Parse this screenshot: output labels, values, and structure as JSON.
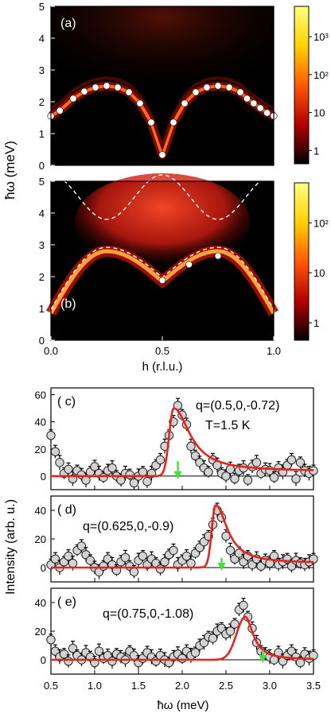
{
  "figure": {
    "shared_ylabel_top": "ħω (meV)",
    "shared_ylabel_bottom": "Intensity (arb. u.)",
    "xlabel_top": "h (r.l.u.)",
    "xlabel_bottom": "ħω (meV)"
  },
  "chart_data": [
    {
      "type": "heatmap",
      "panel": "(a)",
      "xlim": [
        0.0,
        1.0
      ],
      "ylim": [
        0,
        5
      ],
      "x_ticks": [
        "0.0",
        "0.5",
        "1.0"
      ],
      "y_ticks": [
        "0",
        "1",
        "2",
        "3",
        "4",
        "5"
      ],
      "colorbar": {
        "scale": "log",
        "ticks": [
          "1",
          "10",
          "10²",
          "10³"
        ],
        "colors": [
          "#000000",
          "#b40000",
          "#ff5a00",
          "#ffd200",
          "#ffff80"
        ]
      },
      "series": [
        {
          "name": "points",
          "points": [
            [
              0.0,
              1.55
            ],
            [
              0.04,
              1.72
            ],
            [
              0.1,
              2.1
            ],
            [
              0.15,
              2.32
            ],
            [
              0.2,
              2.45
            ],
            [
              0.25,
              2.5
            ],
            [
              0.3,
              2.45
            ],
            [
              0.35,
              2.3
            ],
            [
              0.4,
              1.95
            ],
            [
              0.45,
              1.35
            ],
            [
              0.5,
              0.33
            ],
            [
              0.55,
              1.35
            ],
            [
              0.6,
              1.95
            ],
            [
              0.65,
              2.3
            ],
            [
              0.7,
              2.45
            ],
            [
              0.75,
              2.5
            ],
            [
              0.8,
              2.45
            ],
            [
              0.85,
              2.3
            ],
            [
              0.88,
              2.1
            ],
            [
              0.91,
              1.95
            ],
            [
              0.94,
              1.8
            ],
            [
              0.97,
              1.65
            ],
            [
              1.0,
              1.55
            ]
          ]
        }
      ]
    },
    {
      "type": "heatmap",
      "panel": "(b)",
      "xlim": [
        0.0,
        1.0
      ],
      "ylim": [
        0,
        5
      ],
      "x_ticks": [
        "0.0",
        "0.5",
        "1.0"
      ],
      "y_ticks": [
        "0",
        "1",
        "2",
        "3",
        "4",
        "5"
      ],
      "xlabel": "h (r.l.u.)",
      "colorbar": {
        "scale": "log",
        "ticks": [
          "1",
          "10",
          "10²"
        ],
        "colors": [
          "#000000",
          "#b40000",
          "#ff5a00",
          "#ffd200",
          "#ffff80"
        ]
      },
      "series": [
        {
          "name": "points",
          "points": [
            [
              0.5,
              1.88
            ],
            [
              0.62,
              2.38
            ],
            [
              0.75,
              2.65
            ]
          ]
        }
      ]
    },
    {
      "type": "scatter",
      "panel": "( c)",
      "annotation": [
        "q=(0.5,0,-0.72)",
        "T=1.5 K"
      ],
      "xlim": [
        0.5,
        3.5
      ],
      "ylim": [
        -10,
        65
      ],
      "y_ticks": [
        0,
        20,
        40,
        60
      ],
      "arrow_x": 1.95,
      "fit": {
        "baseline": 3.5,
        "center": 1.9,
        "amplitude": 48,
        "width_left": 0.07,
        "width_right": 0.22
      },
      "x": [
        0.5,
        0.55,
        0.6,
        0.65,
        0.7,
        0.75,
        0.8,
        0.85,
        0.9,
        0.95,
        1.0,
        1.05,
        1.1,
        1.15,
        1.2,
        1.25,
        1.3,
        1.35,
        1.4,
        1.45,
        1.5,
        1.55,
        1.6,
        1.65,
        1.7,
        1.75,
        1.8,
        1.85,
        1.9,
        1.95,
        2.0,
        2.05,
        2.1,
        2.15,
        2.2,
        2.25,
        2.3,
        2.35,
        2.4,
        2.45,
        2.5,
        2.55,
        2.6,
        2.65,
        2.7,
        2.75,
        2.8,
        2.85,
        2.9,
        2.95,
        3.0,
        3.05,
        3.1,
        3.15,
        3.2,
        3.25,
        3.3,
        3.35,
        3.4,
        3.45,
        3.5
      ],
      "y": [
        30,
        18,
        10,
        2,
        5,
        -2,
        4,
        1,
        -3,
        3,
        7,
        2,
        -1,
        4,
        6,
        0,
        -3,
        2,
        1,
        -5,
        0,
        3,
        -4,
        2,
        8,
        12,
        22,
        30,
        40,
        52,
        45,
        38,
        22,
        15,
        10,
        6,
        3,
        12,
        8,
        2,
        0,
        5,
        -2,
        4,
        6,
        -3,
        7,
        10,
        2,
        5,
        4,
        -1,
        6,
        3,
        8,
        12,
        -2,
        10,
        4,
        2,
        4
      ]
    },
    {
      "type": "scatter",
      "panel": "( d)",
      "annotation": [
        "q=(0.625,0,-0.9)"
      ],
      "xlim": [
        0.5,
        3.5
      ],
      "ylim": [
        -10,
        50
      ],
      "y_ticks": [
        0,
        20,
        40
      ],
      "arrow_x": 2.45,
      "fit": {
        "baseline": 3,
        "center": 2.38,
        "amplitude": 42,
        "width_left": 0.06,
        "width_right": 0.16
      },
      "x": [
        0.5,
        0.55,
        0.6,
        0.65,
        0.7,
        0.75,
        0.8,
        0.85,
        0.9,
        0.95,
        1.0,
        1.05,
        1.1,
        1.15,
        1.2,
        1.25,
        1.3,
        1.35,
        1.4,
        1.45,
        1.5,
        1.55,
        1.6,
        1.65,
        1.7,
        1.75,
        1.8,
        1.85,
        1.9,
        1.95,
        2.0,
        2.05,
        2.1,
        2.15,
        2.2,
        2.25,
        2.3,
        2.35,
        2.4,
        2.45,
        2.5,
        2.55,
        2.6,
        2.65,
        2.7,
        2.75,
        2.8,
        2.85,
        2.9,
        2.95,
        3.0,
        3.05,
        3.1,
        3.15,
        3.2,
        3.25,
        3.3,
        3.35,
        3.4,
        3.45,
        3.5
      ],
      "y": [
        2,
        6,
        0,
        4,
        8,
        3,
        12,
        15,
        9,
        5,
        0,
        -3,
        1,
        6,
        2,
        -2,
        4,
        7,
        1,
        -3,
        5,
        8,
        2,
        6,
        3,
        -1,
        4,
        9,
        12,
        2,
        5,
        8,
        3,
        10,
        14,
        18,
        22,
        30,
        40,
        35,
        22,
        12,
        6,
        10,
        4,
        8,
        2,
        6,
        1,
        5,
        3,
        8,
        2,
        4,
        6,
        1,
        5,
        3,
        2,
        4,
        6
      ]
    },
    {
      "type": "scatter",
      "panel": "( e)",
      "annotation": [
        "q=(0.75,0,-1.08)"
      ],
      "xlim": [
        0.5,
        3.5
      ],
      "ylim": [
        -10,
        50
      ],
      "y_ticks": [
        0,
        20,
        40
      ],
      "x_ticks": [
        "0.5",
        "1.0",
        "1.5",
        "2.0",
        "2.5",
        "3.0",
        "3.5"
      ],
      "xlabel": "ħω (meV)",
      "arrow_x": 2.92,
      "fit": {
        "baseline": 0,
        "center": 2.72,
        "amplitude": 30,
        "width_left": 0.14,
        "width_right": 0.11
      },
      "x": [
        0.5,
        0.55,
        0.6,
        0.65,
        0.7,
        0.75,
        0.8,
        0.85,
        0.9,
        0.95,
        1.0,
        1.05,
        1.1,
        1.15,
        1.2,
        1.25,
        1.3,
        1.35,
        1.4,
        1.45,
        1.5,
        1.55,
        1.6,
        1.65,
        1.7,
        1.75,
        1.8,
        1.85,
        1.9,
        1.95,
        2.0,
        2.05,
        2.1,
        2.15,
        2.2,
        2.25,
        2.3,
        2.35,
        2.4,
        2.45,
        2.5,
        2.55,
        2.6,
        2.65,
        2.7,
        2.75,
        2.8,
        2.85,
        2.9,
        2.95,
        3.0,
        3.05,
        3.1,
        3.15,
        3.2,
        3.25,
        3.3,
        3.35,
        3.4,
        3.45,
        3.5
      ],
      "y": [
        14,
        6,
        2,
        4,
        -1,
        8,
        3,
        0,
        5,
        2,
        -2,
        6,
        1,
        3,
        -1,
        4,
        2,
        0,
        6,
        3,
        -2,
        1,
        5,
        2,
        -1,
        3,
        0,
        -2,
        2,
        4,
        1,
        6,
        3,
        5,
        10,
        12,
        16,
        15,
        20,
        22,
        18,
        20,
        25,
        35,
        38,
        30,
        22,
        12,
        6,
        4,
        2,
        0,
        5,
        -1,
        3,
        6,
        2,
        -2,
        4,
        1,
        3
      ]
    }
  ]
}
